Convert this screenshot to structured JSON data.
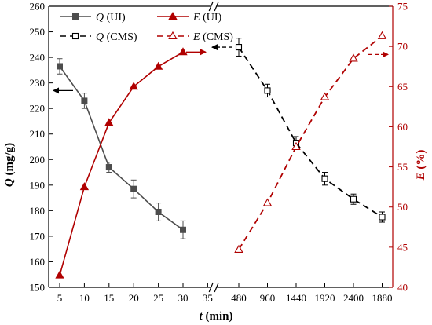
{
  "chart_data": {
    "type": "line",
    "x_categories": [
      "5",
      "10",
      "15",
      "20",
      "25",
      "30",
      "35",
      "480",
      "960",
      "1440",
      "1920",
      "2400",
      "1880"
    ],
    "xlabel_var": "t",
    "xlabel_unit": " (min)",
    "ylabel_left_var": "Q",
    "ylabel_left_unit": " (mg/g)",
    "ylabel_right_var": "E",
    "ylabel_right_unit": " (%)",
    "ylim_left": [
      150,
      260
    ],
    "yticks_left": [
      150,
      160,
      170,
      180,
      190,
      200,
      210,
      220,
      230,
      240,
      250,
      260
    ],
    "ylim_right": [
      40,
      75
    ],
    "yticks_right": [
      40,
      45,
      50,
      55,
      60,
      65,
      70,
      75
    ],
    "axis_break_between": [
      "35",
      "480"
    ],
    "grid": false,
    "legend_position": "top-center",
    "colors": {
      "gray": "#4d4d4d",
      "red": "#b00000",
      "black": "#000000"
    },
    "series": [
      {
        "name_var": "Q",
        "name_suffix": " (UI)",
        "axis": "left",
        "style": "solid",
        "marker": "filled-square",
        "color": "#4d4d4d",
        "x": [
          "5",
          "10",
          "15",
          "20",
          "25",
          "30"
        ],
        "values": [
          236.5,
          223,
          197,
          188.5,
          179.5,
          172.5
        ],
        "errors": [
          3,
          3,
          2,
          3.5,
          3.5,
          3.5
        ]
      },
      {
        "name_var": "E",
        "name_suffix": " (UI)",
        "axis": "right",
        "style": "solid",
        "marker": "filled-triangle",
        "color": "#b00000",
        "x": [
          "5",
          "10",
          "15",
          "20",
          "25",
          "30"
        ],
        "values": [
          41.5,
          52.5,
          60.5,
          65,
          67.5,
          69.3
        ]
      },
      {
        "name_var": "Q",
        "name_suffix": " (CMS)",
        "axis": "left",
        "style": "dashed",
        "marker": "open-square",
        "color": "#000000",
        "x": [
          "480",
          "960",
          "1440",
          "1920",
          "2400",
          "1880"
        ],
        "values": [
          244,
          227,
          206.5,
          192.5,
          184.5,
          177.5
        ],
        "errors": [
          3.5,
          2.5,
          2.5,
          2.5,
          2,
          2
        ]
      },
      {
        "name_var": "E",
        "name_suffix": " (CMS)",
        "axis": "right",
        "style": "dashed",
        "marker": "open-triangle",
        "color": "#b00000",
        "x": [
          "480",
          "960",
          "1440",
          "1920",
          "2400",
          "1880"
        ],
        "values": [
          44.7,
          50.5,
          57.5,
          63.7,
          68.5,
          71.3
        ]
      }
    ]
  }
}
